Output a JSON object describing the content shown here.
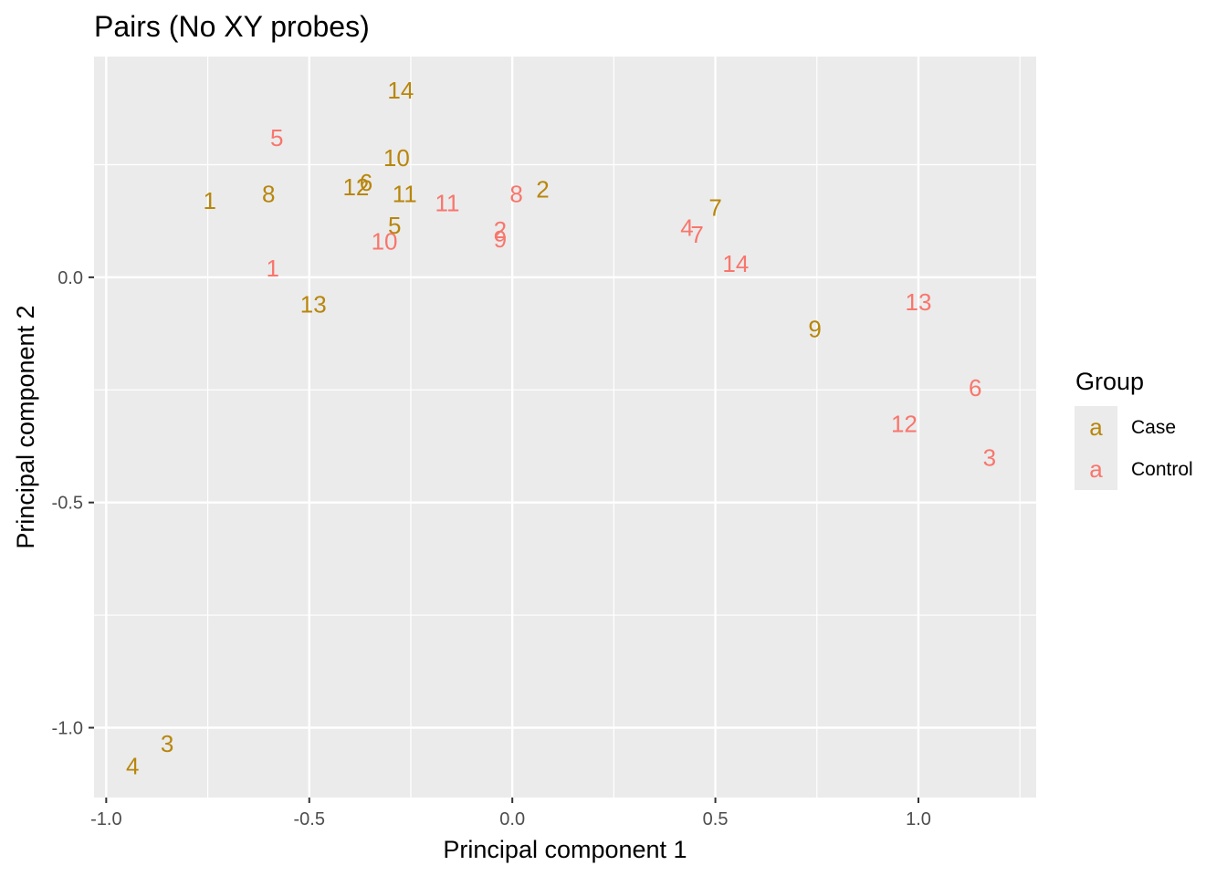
{
  "chart_data": {
    "type": "scatter",
    "title": "Pairs (No XY probes)",
    "xlabel": "Principal component 1",
    "ylabel": "Principal component 2",
    "xlim": [
      -1.03,
      1.29
    ],
    "ylim": [
      -1.155,
      0.49
    ],
    "x_ticks": [
      -1.0,
      -0.5,
      0.0,
      0.5,
      1.0
    ],
    "x_tick_labels": [
      "-1.0",
      "-0.5",
      "0.0",
      "0.5",
      "1.0"
    ],
    "y_ticks": [
      -1.0,
      -0.5,
      0.0
    ],
    "y_tick_labels": [
      "-1.0",
      "-0.5",
      "0.0"
    ],
    "grid": true,
    "legend": {
      "title": "Group",
      "position": "right",
      "key_glyph": "a",
      "entries": [
        {
          "label": "Case",
          "color": "#B8860B"
        },
        {
          "label": "Control",
          "color": "#F8766D"
        }
      ]
    },
    "series": [
      {
        "name": "Case",
        "color": "#B8860B",
        "points": [
          {
            "label": "1",
            "x": -0.745,
            "y": 0.17
          },
          {
            "label": "2",
            "x": 0.075,
            "y": 0.195
          },
          {
            "label": "3",
            "x": -0.85,
            "y": -1.035
          },
          {
            "label": "4",
            "x": -0.935,
            "y": -1.085
          },
          {
            "label": "5",
            "x": -0.29,
            "y": 0.115
          },
          {
            "label": "6",
            "x": -0.36,
            "y": 0.21
          },
          {
            "label": "7",
            "x": 0.5,
            "y": 0.155
          },
          {
            "label": "8",
            "x": -0.6,
            "y": 0.185
          },
          {
            "label": "9",
            "x": 0.745,
            "y": -0.115
          },
          {
            "label": "10",
            "x": -0.285,
            "y": 0.265
          },
          {
            "label": "11",
            "x": -0.265,
            "y": 0.185
          },
          {
            "label": "12",
            "x": -0.385,
            "y": 0.2
          },
          {
            "label": "13",
            "x": -0.49,
            "y": -0.06
          },
          {
            "label": "14",
            "x": -0.275,
            "y": 0.415
          }
        ]
      },
      {
        "name": "Control",
        "color": "#F8766D",
        "points": [
          {
            "label": "1",
            "x": -0.59,
            "y": 0.02
          },
          {
            "label": "2",
            "x": -0.03,
            "y": 0.105
          },
          {
            "label": "3",
            "x": 1.175,
            "y": -0.4
          },
          {
            "label": "4",
            "x": 0.43,
            "y": 0.11
          },
          {
            "label": "5",
            "x": -0.58,
            "y": 0.31
          },
          {
            "label": "6",
            "x": 1.14,
            "y": -0.245
          },
          {
            "label": "7",
            "x": 0.455,
            "y": 0.095
          },
          {
            "label": "8",
            "x": 0.01,
            "y": 0.185
          },
          {
            "label": "9",
            "x": -0.03,
            "y": 0.085
          },
          {
            "label": "10",
            "x": -0.315,
            "y": 0.08
          },
          {
            "label": "11",
            "x": -0.16,
            "y": 0.165
          },
          {
            "label": "12",
            "x": 0.965,
            "y": -0.325
          },
          {
            "label": "13",
            "x": 1.0,
            "y": -0.055
          },
          {
            "label": "14",
            "x": 0.55,
            "y": 0.03
          }
        ]
      }
    ]
  }
}
